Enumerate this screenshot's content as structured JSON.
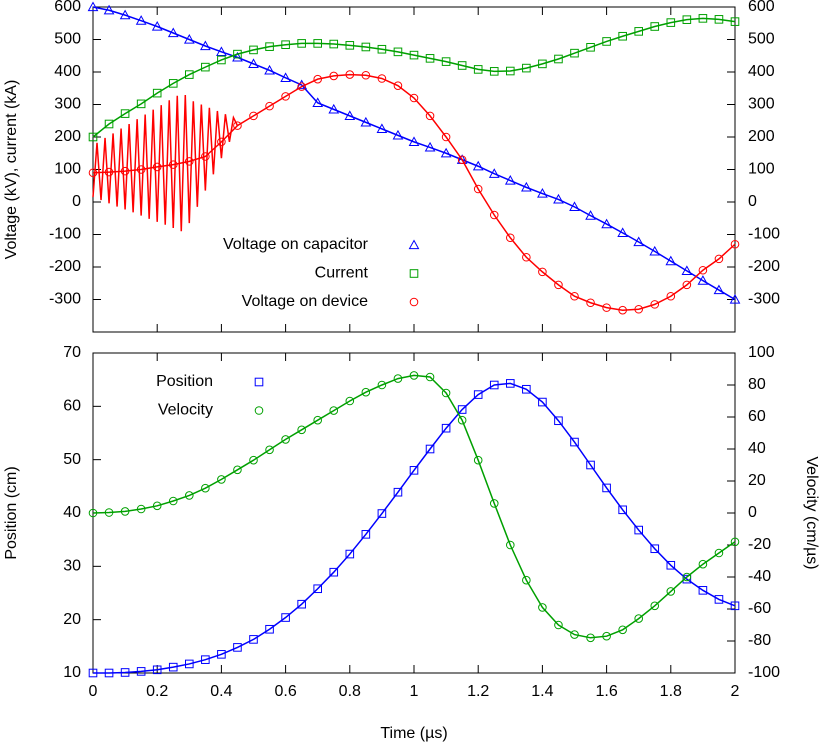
{
  "chart_data": [
    {
      "type": "line",
      "y_label": "Voltage (kV), current (kA)",
      "xlim": [
        0,
        2
      ],
      "xticks": [
        0,
        0.2,
        0.4,
        0.6,
        0.8,
        1,
        1.2,
        1.4,
        1.6,
        1.8,
        2
      ],
      "ylim": [
        -400,
        600
      ],
      "yticks": [
        -300,
        -200,
        -100,
        0,
        100,
        200,
        300,
        400,
        500,
        600
      ],
      "y2lim": [
        -400,
        600
      ],
      "y2ticks": [
        -300,
        -200,
        -100,
        0,
        100,
        200,
        300,
        400,
        500,
        600
      ],
      "legend": "lower left",
      "x": [
        0,
        0.05,
        0.1,
        0.15,
        0.2,
        0.25,
        0.3,
        0.35,
        0.4,
        0.45,
        0.5,
        0.55,
        0.6,
        0.65,
        0.7,
        0.75,
        0.8,
        0.85,
        0.9,
        0.95,
        1,
        1.05,
        1.1,
        1.15,
        1.2,
        1.25,
        1.3,
        1.35,
        1.4,
        1.45,
        1.5,
        1.55,
        1.6,
        1.65,
        1.7,
        1.75,
        1.8,
        1.85,
        1.9,
        1.95,
        2
      ],
      "series": [
        {
          "name": "Voltage on capacitor",
          "color": "#0000ff",
          "marker": "triangle",
          "line": true,
          "values": [
            600,
            590,
            575,
            558,
            540,
            520,
            500,
            480,
            462,
            445,
            425,
            405,
            382,
            360,
            305,
            285,
            265,
            245,
            225,
            205,
            185,
            168,
            150,
            130,
            110,
            87,
            66,
            45,
            26,
            8,
            -15,
            -42,
            -68,
            -95,
            -123,
            -152,
            -182,
            -212,
            -242,
            -271,
            -300
          ]
        },
        {
          "name": "Current",
          "color": "#00a000",
          "marker": "square",
          "line": true,
          "values": [
            200,
            240,
            272,
            302,
            335,
            365,
            392,
            415,
            437,
            455,
            468,
            478,
            484,
            488,
            488,
            486,
            482,
            477,
            470,
            462,
            452,
            442,
            432,
            420,
            408,
            402,
            403,
            412,
            425,
            440,
            458,
            476,
            494,
            510,
            525,
            540,
            552,
            561,
            565,
            562,
            555
          ]
        },
        {
          "name": "Voltage on device",
          "color": "#ff0000",
          "marker": "circle",
          "line": true,
          "values": [
            90,
            92,
            95,
            100,
            108,
            115,
            125,
            140,
            185,
            235,
            265,
            295,
            325,
            355,
            378,
            388,
            392,
            390,
            380,
            358,
            320,
            265,
            200,
            130,
            40,
            -40,
            -110,
            -170,
            -215,
            -255,
            -290,
            -310,
            -325,
            -333,
            -330,
            -315,
            -290,
            -255,
            -210,
            -175,
            -130
          ]
        },
        {
          "color": "#ff0000",
          "marker": null,
          "line": true,
          "x": [
            0,
            0.0125,
            0.025,
            0.0375,
            0.05,
            0.0625,
            0.075,
            0.0875,
            0.1,
            0.1125,
            0.125,
            0.1375,
            0.15,
            0.1625,
            0.175,
            0.1875,
            0.2,
            0.2125,
            0.225,
            0.2375,
            0.25,
            0.2625,
            0.275,
            0.2875,
            0.3,
            0.3125,
            0.325,
            0.3375,
            0.35,
            0.3625,
            0.375,
            0.3875,
            0.4,
            0.4125,
            0.425,
            0.4375,
            0.45
          ],
          "values": [
            15,
            182,
            6,
            197,
            -4,
            211,
            -14,
            226,
            -23,
            240,
            -32,
            255,
            -42,
            269,
            -52,
            284,
            -61,
            298,
            -70,
            313,
            -80,
            327,
            -90,
            329,
            -65,
            310,
            -15,
            300,
            35,
            290,
            85,
            280,
            135,
            270,
            185,
            260,
            235
          ]
        }
      ]
    },
    {
      "type": "line",
      "x_label": "Time (µs)",
      "y_label": "Position (cm)",
      "y2_label": "Velocity (cm/µs)",
      "xlim": [
        0,
        2
      ],
      "xticks": [
        0,
        0.2,
        0.4,
        0.6,
        0.8,
        1,
        1.2,
        1.4,
        1.6,
        1.8,
        2
      ],
      "ylim": [
        10,
        70
      ],
      "yticks": [
        10,
        20,
        30,
        40,
        50,
        60,
        70
      ],
      "y2lim": [
        -100,
        100
      ],
      "y2ticks": [
        -100,
        -80,
        -60,
        -40,
        -20,
        0,
        20,
        40,
        60,
        80,
        100
      ],
      "legend": "upper left",
      "x": [
        0,
        0.05,
        0.1,
        0.15,
        0.2,
        0.25,
        0.3,
        0.35,
        0.4,
        0.45,
        0.5,
        0.55,
        0.6,
        0.65,
        0.7,
        0.75,
        0.8,
        0.85,
        0.9,
        0.95,
        1,
        1.05,
        1.1,
        1.15,
        1.2,
        1.25,
        1.3,
        1.35,
        1.4,
        1.45,
        1.5,
        1.55,
        1.6,
        1.65,
        1.7,
        1.75,
        1.8,
        1.85,
        1.9,
        1.95,
        2
      ],
      "series": [
        {
          "name": "Position",
          "color": "#0000ff",
          "marker": "square",
          "line": true,
          "values": [
            10,
            10,
            10.1,
            10.3,
            10.6,
            11.1,
            11.7,
            12.5,
            13.5,
            14.8,
            16.3,
            18.2,
            20.4,
            22.9,
            25.8,
            28.9,
            32.3,
            36,
            39.9,
            43.9,
            48,
            52,
            55.9,
            59.4,
            62.2,
            64,
            64.3,
            63.2,
            60.8,
            57.3,
            53.3,
            49,
            44.7,
            40.6,
            36.8,
            33.3,
            30.2,
            27.6,
            25.5,
            23.8,
            22.6
          ]
        },
        {
          "name": "Velocity",
          "color": "#00a000",
          "marker": "circle",
          "line": true,
          "axis": "y2",
          "values": [
            0,
            0.3,
            1,
            2.5,
            4.5,
            7.5,
            11,
            15.5,
            21,
            27,
            33,
            39.5,
            46,
            52,
            58,
            64,
            70,
            75.5,
            80,
            84,
            86,
            85,
            75,
            58,
            33,
            6,
            -20,
            -42,
            -59,
            -70,
            -76,
            -78,
            -77,
            -73,
            -66,
            -58,
            -49,
            -40,
            -32,
            -25,
            -18
          ]
        }
      ]
    }
  ]
}
